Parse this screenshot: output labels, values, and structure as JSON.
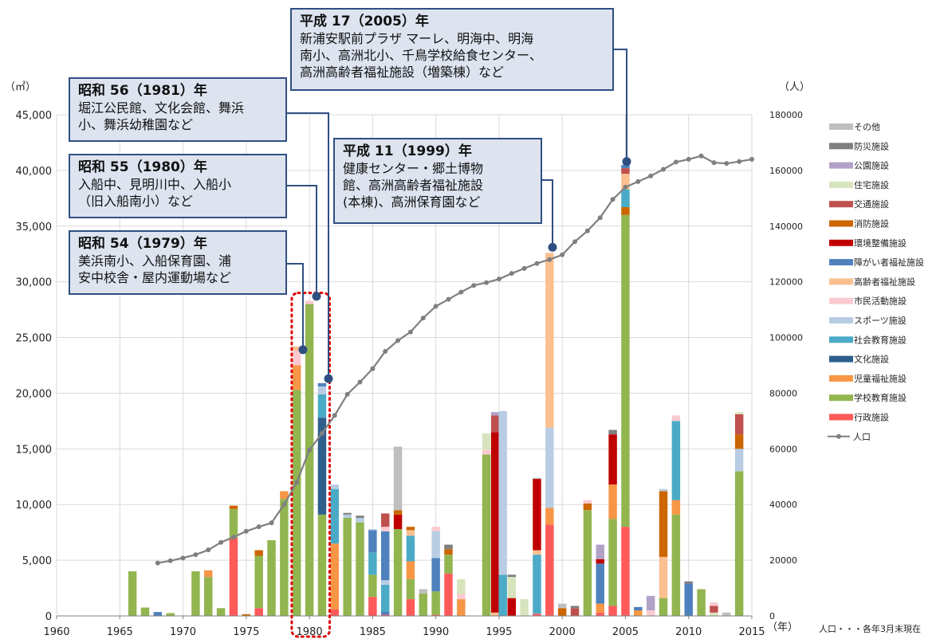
{
  "chart_data": {
    "type": "bar",
    "stacked": true,
    "left_unit": "（㎡）",
    "right_unit": "（人）",
    "x_unit": "（年）",
    "note": "人口・・・各年3月末現在",
    "x_ticks": [
      1960,
      1965,
      1970,
      1975,
      1980,
      1985,
      1990,
      1995,
      2000,
      2005,
      2010,
      2015
    ],
    "y_left_ticks": [
      "0",
      "5,000",
      "10,000",
      "15,000",
      "20,000",
      "25,000",
      "30,000",
      "35,000",
      "40,000",
      "45,000"
    ],
    "y_right_ticks": [
      "0",
      "20000",
      "40000",
      "60000",
      "80000",
      "100000",
      "120000",
      "140000",
      "160000",
      "180000"
    ],
    "ylim_left": [
      0,
      45000
    ],
    "ylim_right": [
      0,
      180000
    ],
    "xlim": [
      1960,
      2015
    ],
    "grid": true,
    "legend_position": "right",
    "colors": {
      "gyosei": "#fe5a5a",
      "gakko": "#92b550",
      "jido": "#f79646",
      "bunka": "#2f5e8e",
      "shakai": "#4babc6",
      "sports": "#b8cde4",
      "shimin": "#fbcad0",
      "koreisha": "#fac090",
      "shogai": "#4f81bd",
      "kankyo": "#c00000",
      "shobo": "#cc6600",
      "kotsu": "#c0504d",
      "jutaku": "#d7e4bd",
      "koen": "#b3a2c7",
      "bosai": "#7f7f7f",
      "sonota": "#bfbfbf",
      "population": "#7f7f7f"
    },
    "legend": [
      {
        "key": "sonota",
        "label": "その他"
      },
      {
        "key": "bosai",
        "label": "防災施設"
      },
      {
        "key": "koen",
        "label": "公園施設"
      },
      {
        "key": "jutaku",
        "label": "住宅施設"
      },
      {
        "key": "kotsu",
        "label": "交通施設"
      },
      {
        "key": "shobo",
        "label": "消防施設"
      },
      {
        "key": "kankyo",
        "label": "環境整備施設"
      },
      {
        "key": "shogai",
        "label": "障がい者福祉施設"
      },
      {
        "key": "koreisha",
        "label": "高齢者福祉施設"
      },
      {
        "key": "shimin",
        "label": "市民活動施設"
      },
      {
        "key": "sports",
        "label": "スポーツ施設"
      },
      {
        "key": "shakai",
        "label": "社会教育施設"
      },
      {
        "key": "bunka",
        "label": "文化施設"
      },
      {
        "key": "jido",
        "label": "児童福祉施設"
      },
      {
        "key": "gakko",
        "label": "学校教育施設"
      },
      {
        "key": "gyosei",
        "label": "行政施設"
      },
      {
        "key": "population",
        "label": "人口"
      }
    ],
    "bars": [
      {
        "year": 1966,
        "segments": [
          [
            "gakko",
            4000
          ]
        ]
      },
      {
        "year": 1967,
        "segments": [
          [
            "gakko",
            750
          ]
        ]
      },
      {
        "year": 1968,
        "segments": [
          [
            "shogai",
            350
          ]
        ]
      },
      {
        "year": 1969,
        "segments": [
          [
            "gakko",
            250
          ]
        ]
      },
      {
        "year": 1971,
        "segments": [
          [
            "gakko",
            4000
          ]
        ]
      },
      {
        "year": 1972,
        "segments": [
          [
            "gakko",
            3500
          ],
          [
            "jido",
            600
          ]
        ]
      },
      {
        "year": 1973,
        "segments": [
          [
            "gakko",
            700
          ]
        ]
      },
      {
        "year": 1974,
        "segments": [
          [
            "gyosei",
            7000
          ],
          [
            "gakko",
            2600
          ],
          [
            "shobo",
            300
          ]
        ]
      },
      {
        "year": 1975,
        "segments": [
          [
            "shobo",
            150
          ]
        ]
      },
      {
        "year": 1976,
        "segments": [
          [
            "gyosei",
            700
          ],
          [
            "gakko",
            4700
          ],
          [
            "shobo",
            500
          ]
        ]
      },
      {
        "year": 1977,
        "segments": [
          [
            "gakko",
            6800
          ]
        ]
      },
      {
        "year": 1978,
        "segments": [
          [
            "gakko",
            10500
          ],
          [
            "jido",
            700
          ]
        ]
      },
      {
        "year": 1979,
        "segments": [
          [
            "gakko",
            20300
          ],
          [
            "jido",
            2200
          ],
          [
            "shimin",
            1300
          ],
          [
            "koreisha",
            400
          ]
        ]
      },
      {
        "year": 1980,
        "segments": [
          [
            "gakko",
            28000
          ],
          [
            "shimin",
            300
          ]
        ]
      },
      {
        "year": 1981,
        "segments": [
          [
            "gakko",
            9100
          ],
          [
            "bunka",
            8700
          ],
          [
            "shakai",
            2100
          ],
          [
            "sports",
            700
          ],
          [
            "shogai",
            300
          ]
        ]
      },
      {
        "year": 1982,
        "segments": [
          [
            "gyosei",
            600
          ],
          [
            "jido",
            5900
          ],
          [
            "shakai",
            4900
          ],
          [
            "sports",
            400
          ]
        ]
      },
      {
        "year": 1983,
        "segments": [
          [
            "gakko",
            8800
          ],
          [
            "sports",
            300
          ],
          [
            "bosai",
            150
          ]
        ]
      },
      {
        "year": 1984,
        "segments": [
          [
            "gakko",
            8400
          ],
          [
            "sports",
            400
          ],
          [
            "bosai",
            200
          ]
        ]
      },
      {
        "year": 1985,
        "segments": [
          [
            "gyosei",
            1700
          ],
          [
            "gakko",
            2000
          ],
          [
            "shakai",
            2000
          ],
          [
            "shogai",
            2000
          ],
          [
            "sports",
            100
          ]
        ]
      },
      {
        "year": 1986,
        "segments": [
          [
            "gyosei",
            100
          ],
          [
            "shogai",
            300
          ],
          [
            "shakai",
            2400
          ],
          [
            "sports",
            400
          ],
          [
            "shogai",
            4400
          ],
          [
            "shimin",
            400
          ],
          [
            "kotsu",
            1200
          ]
        ]
      },
      {
        "year": 1987,
        "segments": [
          [
            "gakko",
            7800
          ],
          [
            "kankyo",
            1300
          ],
          [
            "shobo",
            400
          ],
          [
            "sonota",
            5700
          ]
        ]
      },
      {
        "year": 1988,
        "segments": [
          [
            "gyosei",
            1500
          ],
          [
            "gakko",
            1800
          ],
          [
            "jido",
            1600
          ],
          [
            "shakai",
            2300
          ],
          [
            "koreisha",
            500
          ],
          [
            "shobo",
            300
          ]
        ]
      },
      {
        "year": 1989,
        "segments": [
          [
            "gakko",
            2000
          ],
          [
            "sonota",
            400
          ]
        ]
      },
      {
        "year": 1990,
        "segments": [
          [
            "gyosei",
            100
          ],
          [
            "gakko",
            2100
          ],
          [
            "shogai",
            3000
          ],
          [
            "sports",
            2400
          ],
          [
            "shimin",
            400
          ]
        ]
      },
      {
        "year": 1991,
        "segments": [
          [
            "gyosei",
            3800
          ],
          [
            "gakko",
            1700
          ],
          [
            "shobo",
            500
          ],
          [
            "bosai",
            400
          ]
        ]
      },
      {
        "year": 1992,
        "segments": [
          [
            "jido",
            1500
          ],
          [
            "shimin",
            500
          ],
          [
            "jutaku",
            1300
          ]
        ]
      },
      {
        "year": 1994,
        "segments": [
          [
            "gakko",
            14500
          ],
          [
            "shimin",
            400
          ],
          [
            "jutaku",
            1500
          ]
        ]
      },
      {
        "year": 1994.7,
        "segments": [
          [
            "koreisha",
            300
          ],
          [
            "kankyo",
            16200
          ],
          [
            "kotsu",
            1500
          ],
          [
            "koen",
            300
          ]
        ]
      },
      {
        "year": 1995.3,
        "segments": [
          [
            "shakai",
            3700
          ],
          [
            "sports",
            14700
          ]
        ]
      },
      {
        "year": 1996,
        "segments": [
          [
            "kankyo",
            1600
          ],
          [
            "jutaku",
            1900
          ],
          [
            "bosai",
            200
          ]
        ]
      },
      {
        "year": 1997,
        "segments": [
          [
            "jutaku",
            1500
          ]
        ]
      },
      {
        "year": 1998,
        "segments": [
          [
            "gyosei",
            200
          ],
          [
            "shakai",
            5300
          ],
          [
            "koreisha",
            400
          ],
          [
            "kankyo",
            6400
          ],
          [
            "sonota",
            100
          ]
        ]
      },
      {
        "year": 1999,
        "segments": [
          [
            "gyosei",
            8200
          ],
          [
            "jido",
            1500
          ],
          [
            "sports",
            7200
          ],
          [
            "koreisha",
            15700
          ]
        ]
      },
      {
        "year": 2000,
        "segments": [
          [
            "shobo",
            700
          ],
          [
            "sonota",
            400
          ]
        ]
      },
      {
        "year": 2001,
        "segments": [
          [
            "kotsu",
            700
          ],
          [
            "bosai",
            200
          ]
        ]
      },
      {
        "year": 2002,
        "segments": [
          [
            "gakko",
            9500
          ],
          [
            "shobo",
            600
          ],
          [
            "shimin",
            300
          ]
        ]
      },
      {
        "year": 2003,
        "segments": [
          [
            "gyosei",
            300
          ],
          [
            "jido",
            800
          ],
          [
            "shogai",
            3600
          ],
          [
            "kankyo",
            400
          ],
          [
            "koen",
            1300
          ]
        ]
      },
      {
        "year": 2004,
        "segments": [
          [
            "gyosei",
            900
          ],
          [
            "gakko",
            7800
          ],
          [
            "jido",
            3100
          ],
          [
            "kankyo",
            4500
          ],
          [
            "bosai",
            400
          ]
        ]
      },
      {
        "year": 2005,
        "segments": [
          [
            "gyosei",
            8000
          ],
          [
            "gakko",
            28000
          ],
          [
            "shobo",
            700
          ],
          [
            "shakai",
            1600
          ],
          [
            "koreisha",
            1400
          ],
          [
            "kotsu",
            500
          ],
          [
            "shogai",
            300
          ]
        ]
      },
      {
        "year": 2006,
        "segments": [
          [
            "jido",
            500
          ],
          [
            "shogai",
            300
          ]
        ]
      },
      {
        "year": 2007,
        "segments": [
          [
            "shimin",
            500
          ],
          [
            "koen",
            1300
          ]
        ]
      },
      {
        "year": 2008,
        "segments": [
          [
            "gakko",
            1600
          ],
          [
            "koreisha",
            3700
          ],
          [
            "shobo",
            5900
          ],
          [
            "sports",
            200
          ]
        ]
      },
      {
        "year": 2009,
        "segments": [
          [
            "gakko",
            9100
          ],
          [
            "jido",
            1300
          ],
          [
            "shakai",
            7100
          ],
          [
            "shimin",
            500
          ]
        ]
      },
      {
        "year": 2010,
        "segments": [
          [
            "shogai",
            2900
          ],
          [
            "bosai",
            200
          ]
        ]
      },
      {
        "year": 2011,
        "segments": [
          [
            "gakko",
            2400
          ]
        ]
      },
      {
        "year": 2012,
        "segments": [
          [
            "jutaku",
            300
          ],
          [
            "kotsu",
            600
          ],
          [
            "shimin",
            300
          ]
        ]
      },
      {
        "year": 2013,
        "segments": [
          [
            "sonota",
            300
          ]
        ]
      },
      {
        "year": 2014,
        "segments": [
          [
            "gakko",
            13000
          ],
          [
            "sports",
            2000
          ],
          [
            "shobo",
            1300
          ],
          [
            "kotsu",
            1800
          ],
          [
            "jutaku",
            200
          ]
        ]
      }
    ],
    "population": [
      [
        1968,
        19000
      ],
      [
        1969,
        19800
      ],
      [
        1970,
        20800
      ],
      [
        1971,
        22000
      ],
      [
        1972,
        23700
      ],
      [
        1973,
        26400
      ],
      [
        1974,
        28300
      ],
      [
        1975,
        30400
      ],
      [
        1976,
        32000
      ],
      [
        1977,
        33400
      ],
      [
        1978,
        40000
      ],
      [
        1979,
        48000
      ],
      [
        1980,
        59600
      ],
      [
        1981,
        65600
      ],
      [
        1982,
        72000
      ],
      [
        1983,
        79600
      ],
      [
        1984,
        84000
      ],
      [
        1985,
        88800
      ],
      [
        1986,
        95000
      ],
      [
        1987,
        98900
      ],
      [
        1988,
        102000
      ],
      [
        1989,
        107000
      ],
      [
        1990,
        111200
      ],
      [
        1991,
        113700
      ],
      [
        1992,
        116300
      ],
      [
        1993,
        118700
      ],
      [
        1994,
        119700
      ],
      [
        1995,
        121000
      ],
      [
        1996,
        123000
      ],
      [
        1997,
        124800
      ],
      [
        1998,
        126600
      ],
      [
        1999,
        128000
      ],
      [
        2000,
        129700
      ],
      [
        2001,
        134400
      ],
      [
        2002,
        138300
      ],
      [
        2003,
        143000
      ],
      [
        2004,
        149600
      ],
      [
        2005,
        154000
      ],
      [
        2006,
        156000
      ],
      [
        2007,
        158000
      ],
      [
        2008,
        160400
      ],
      [
        2009,
        163000
      ],
      [
        2010,
        164000
      ],
      [
        2011,
        165200
      ],
      [
        2012,
        162800
      ],
      [
        2013,
        162500
      ],
      [
        2014,
        163200
      ],
      [
        2015,
        164000
      ]
    ],
    "annotations": [
      {
        "id": "s54",
        "title": "昭和 54（1979）年",
        "body": "美浜南小、入船保育園、浦\n安中校舎・屋内運動場など",
        "target_year": 1979,
        "target_value": 23900
      },
      {
        "id": "s55",
        "title": "昭和 55（1980）年",
        "body": "入船中、見明川中、入船小\n（旧入船南小）など",
        "target_year": 1980,
        "target_value": 28700
      },
      {
        "id": "s56",
        "title": "昭和 56（1981）年",
        "body": "堀江公民館、文化会館、舞浜\n小、舞浜幼稚園など",
        "target_year": 1981,
        "target_value": 21300
      },
      {
        "id": "h11",
        "title": "平成 11（1999）年",
        "body": "健康センター・郷土博物\n館、高洲高齢者福祉施設\n(本棟)、高洲保育園など",
        "target_year": 1999,
        "target_value": 33100
      },
      {
        "id": "h17",
        "title": "平成 17（2005）年",
        "body": "新浦安駅前プラザ マーレ、明海中、明海\n南小、高洲北小、千鳥学校給食センター、\n高洲高齢者福祉施設（増築棟）など",
        "target_year": 2005,
        "target_value": 40800
      }
    ]
  }
}
